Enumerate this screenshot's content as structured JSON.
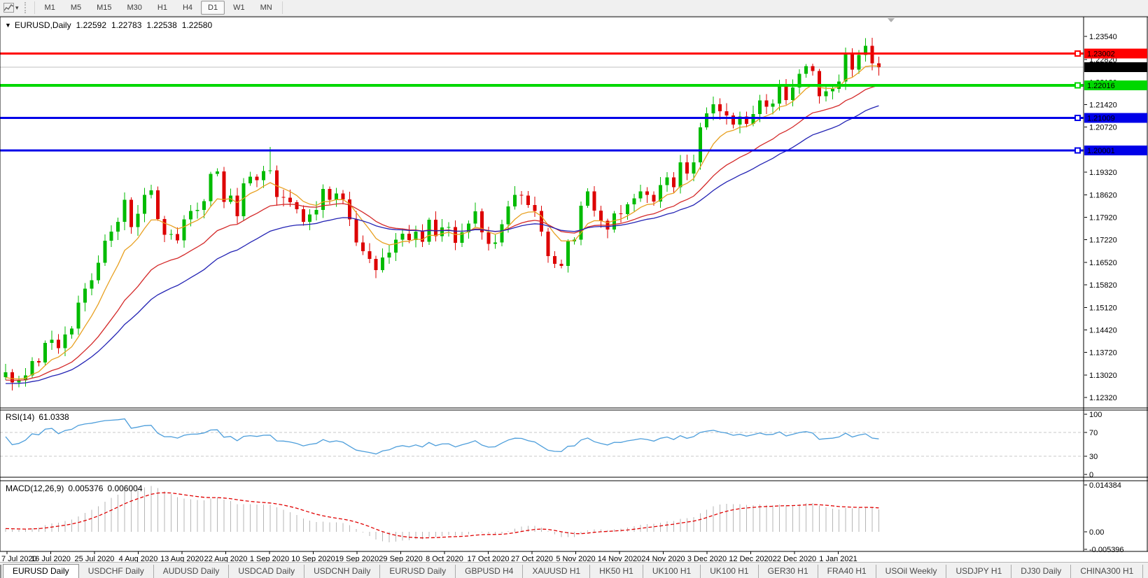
{
  "toolbar": {
    "chart_tool_icon": "chart-cursor",
    "dropdown_icon": "▾",
    "timeframes": [
      {
        "label": "M1",
        "active": false
      },
      {
        "label": "M5",
        "active": false
      },
      {
        "label": "M15",
        "active": false
      },
      {
        "label": "M30",
        "active": false
      },
      {
        "label": "H1",
        "active": false
      },
      {
        "label": "H4",
        "active": false
      },
      {
        "label": "D1",
        "active": true
      },
      {
        "label": "W1",
        "active": false
      },
      {
        "label": "MN",
        "active": false
      }
    ]
  },
  "chart_data": {
    "type": "candlestick",
    "title": {
      "marker_icon": "▼",
      "symbol": "EURUSD,Daily",
      "open": "1.22592",
      "high": "1.22783",
      "low": "1.22538",
      "close": "1.22580"
    },
    "y_ticks": [
      "1.23540",
      "1.22820",
      "1.22120",
      "1.21420",
      "1.20720",
      "1.20020",
      "1.19320",
      "1.18620",
      "1.17920",
      "1.17220",
      "1.16520",
      "1.15820",
      "1.15120",
      "1.14420",
      "1.13720",
      "1.13020",
      "1.12320"
    ],
    "x_tick_labels": [
      "7 Jul 2020",
      "16 Jul 2020",
      "25 Jul 2020",
      "4 Aug 2020",
      "13 Aug 2020",
      "22 Aug 2020",
      "1 Sep 2020",
      "10 Sep 2020",
      "19 Sep 2020",
      "29 Sep 2020",
      "8 Oct 2020",
      "17 Oct 2020",
      "27 Oct 2020",
      "5 Nov 2020",
      "14 Nov 2020",
      "24 Nov 2020",
      "3 Dec 2020",
      "12 Dec 2020",
      "22 Dec 2020",
      "1 Jan 2021"
    ],
    "closes": [
      1.131,
      1.1279,
      1.1285,
      1.1301,
      1.1345,
      1.1341,
      1.1402,
      1.1412,
      1.1386,
      1.1428,
      1.1446,
      1.1527,
      1.157,
      1.1596,
      1.1651,
      1.1719,
      1.1748,
      1.1778,
      1.1846,
      1.1762,
      1.1803,
      1.1862,
      1.1876,
      1.1787,
      1.1738,
      1.174,
      1.172,
      1.1785,
      1.1812,
      1.1815,
      1.1842,
      1.1927,
      1.1934,
      1.184,
      1.1859,
      1.1795,
      1.1898,
      1.1918,
      1.1907,
      1.1936,
      1.1938,
      1.1855,
      1.1853,
      1.1839,
      1.1817,
      1.1778,
      1.1801,
      1.1815,
      1.188,
      1.1846,
      1.1866,
      1.1848,
      1.1786,
      1.1714,
      1.1687,
      1.1663,
      1.1628,
      1.1667,
      1.1682,
      1.1722,
      1.1741,
      1.1721,
      1.1748,
      1.1716,
      1.1784,
      1.1733,
      1.176,
      1.1762,
      1.1713,
      1.1745,
      1.1772,
      1.181,
      1.1745,
      1.1709,
      1.1714,
      1.177,
      1.1826,
      1.1862,
      1.1859,
      1.183,
      1.1812,
      1.1748,
      1.1671,
      1.1647,
      1.1641,
      1.1717,
      1.1723,
      1.1828,
      1.1873,
      1.1813,
      1.1781,
      1.1754,
      1.1804,
      1.1802,
      1.1832,
      1.1851,
      1.1873,
      1.1862,
      1.1841,
      1.1892,
      1.1916,
      1.1885,
      1.1963,
      1.1928,
      1.1963,
      1.2071,
      1.2115,
      1.2143,
      1.2121,
      1.2108,
      1.208,
      1.2105,
      1.2082,
      1.2113,
      1.2155,
      1.2135,
      1.2145,
      1.2203,
      1.2156,
      1.2195,
      1.2238,
      1.2262,
      1.2246,
      1.2168,
      1.2183,
      1.2191,
      1.2214,
      1.2299,
      1.2251,
      1.2296,
      1.2325,
      1.227,
      1.2258
    ],
    "warmup_closes": [
      1.1135,
      1.115,
      1.1142,
      1.1158,
      1.1165,
      1.1172,
      1.116,
      1.1178,
      1.1185,
      1.1192,
      1.118,
      1.1198,
      1.1205,
      1.1212,
      1.12,
      1.1218,
      1.1225,
      1.1232,
      1.122,
      1.1238,
      1.1245,
      1.1252,
      1.124,
      1.1258,
      1.1265,
      1.1272,
      1.126,
      1.1264,
      1.1271,
      1.1262,
      1.1255,
      1.1268,
      1.1275,
      1.1282,
      1.127,
      1.1261,
      1.1268,
      1.1275,
      1.1282,
      1.1289,
      1.1278,
      1.1285,
      1.1292,
      1.1284,
      1.1276,
      1.1283,
      1.129,
      1.1297,
      1.1288,
      1.128,
      1.1287,
      1.1294,
      1.1286,
      1.1278,
      1.1285,
      1.1292,
      1.1299,
      1.1291,
      1.1283,
      1.1295
    ],
    "wick_overrides": {
      "1": {
        "low": 1.1254
      },
      "40": {
        "high": 1.2011
      },
      "130": {
        "high": 1.2349
      }
    },
    "colors": {
      "bull": "#00BB00",
      "bear": "#DD0000",
      "ma_fast": "#E8A020",
      "ma_mid": "#D42A2A",
      "ma_slow": "#2323B4",
      "price_line": "#c0c0c0",
      "grid_dash": "#c8c8c8",
      "rsi_line": "#4D9EDB",
      "macd_hist": "#b6b6b6",
      "macd_signal": "#E00000"
    },
    "moving_averages": [
      {
        "name": "fast",
        "method": "ema",
        "period": 8
      },
      {
        "name": "medium",
        "method": "ema",
        "period": 21
      },
      {
        "name": "slow",
        "method": "ema",
        "period": 34
      }
    ],
    "hlines": [
      {
        "price": 1.23002,
        "label": "1.23002",
        "color": "#FF0000",
        "width": 3
      },
      {
        "price": 1.22016,
        "label": "1.22016",
        "color": "#00D800",
        "width": 4
      },
      {
        "price": 1.21009,
        "label": "1.21009",
        "color": "#0000E8",
        "width": 3
      },
      {
        "price": 1.20001,
        "label": "1.20001",
        "color": "#0000E8",
        "width": 3
      }
    ],
    "current_price": {
      "value": 1.2258,
      "label": "1.22580",
      "badge_color": "#000000"
    },
    "indicators": [
      {
        "id": "rsi",
        "label": "RSI(14)",
        "value": "61.0338",
        "levels": [
          70,
          30
        ],
        "axis_labels": [
          {
            "v": 100,
            "t": "100"
          },
          {
            "v": 70,
            "t": "70"
          },
          {
            "v": 30,
            "t": "30"
          },
          {
            "v": 0,
            "t": "0"
          }
        ]
      },
      {
        "id": "macd",
        "label": "MACD(12,26,9)",
        "main_value": "0.005376",
        "signal_value": "0.006004",
        "axis_labels": [
          {
            "v": 0.014384,
            "t": "0.014384"
          },
          {
            "v": 0.0,
            "t": "0.00"
          },
          {
            "v": -0.005396,
            "t": "-0.005396"
          }
        ]
      }
    ]
  },
  "tabs": {
    "scroll_left_icon": "◂",
    "scroll_right_icon": "▸",
    "items": [
      {
        "label": "EURUSD Daily",
        "active": true
      },
      {
        "label": "USDCHF Daily"
      },
      {
        "label": "AUDUSD Daily"
      },
      {
        "label": "USDCAD Daily"
      },
      {
        "label": "USDCNH Daily"
      },
      {
        "label": "EURUSD Daily"
      },
      {
        "label": "GBPUSD H4"
      },
      {
        "label": "XAUUSD H1"
      },
      {
        "label": "HK50 H1"
      },
      {
        "label": "UK100 H1"
      },
      {
        "label": "UK100 H1"
      },
      {
        "label": "GER30 H1"
      },
      {
        "label": "FRA40 H1"
      },
      {
        "label": "USOil Weekly"
      },
      {
        "label": "USDJPY H1"
      },
      {
        "label": "DJ30 Daily"
      },
      {
        "label": "CHINA300 H1"
      },
      {
        "label": "USOil",
        "truncated": true
      }
    ]
  }
}
